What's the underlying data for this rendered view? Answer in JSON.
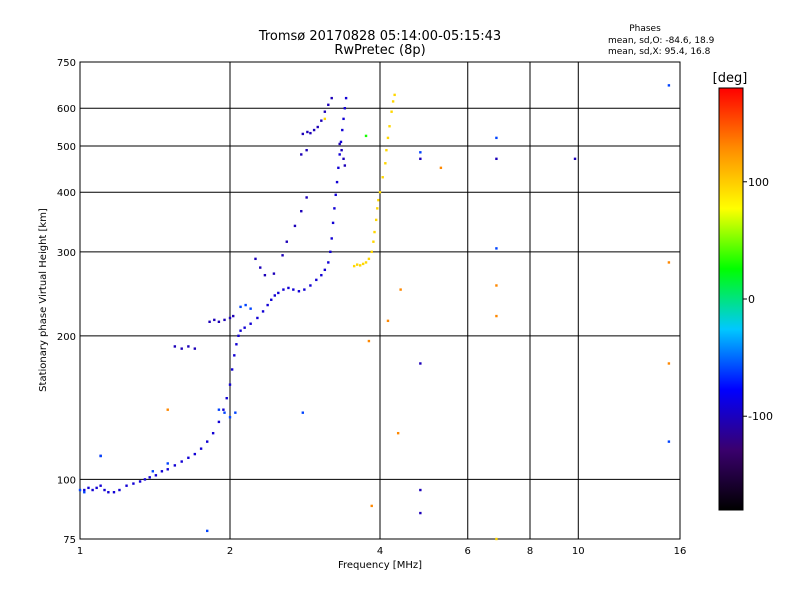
{
  "chart_data": {
    "type": "scatter",
    "title": "Tromsø 20170828 05:14:00-05:15:43",
    "subtitle": "RwPretec (8p)",
    "xlabel": "Frequency [MHz]",
    "ylabel": "Stationary phase Virtual Height [km]",
    "x_scale": "log",
    "y_scale": "log",
    "xlim": [
      1,
      16
    ],
    "ylim": [
      75,
      750
    ],
    "x_ticks": [
      1,
      2,
      4,
      6,
      8,
      10,
      16
    ],
    "y_ticks": [
      75,
      100,
      200,
      300,
      400,
      500,
      600,
      750
    ],
    "grid": true,
    "phase_stats": {
      "heading": "Phases",
      "o_line": "mean, sd,O: -84.6, 18.9",
      "x_line": "mean, sd,X:  95.4, 16.8"
    },
    "colorbar": {
      "label": "[deg]",
      "range": [
        -180,
        180
      ],
      "ticks": [
        100,
        0,
        -100
      ],
      "colors": [
        "#000000",
        "#3a006e",
        "#0000ff",
        "#00c8ff",
        "#00ff00",
        "#ffff00",
        "#ff8c00",
        "#ff0000"
      ]
    },
    "series": [
      {
        "phase_deg": -92,
        "points": [
          [
            1.02,
            95
          ],
          [
            1.04,
            96
          ],
          [
            1.06,
            95
          ],
          [
            1.08,
            96
          ],
          [
            1.1,
            97
          ],
          [
            1.12,
            95
          ],
          [
            1.14,
            94
          ],
          [
            1.17,
            94
          ],
          [
            1.2,
            95
          ],
          [
            1.24,
            97
          ],
          [
            1.28,
            98
          ],
          [
            1.32,
            99
          ],
          [
            1.35,
            100
          ],
          [
            1.38,
            101
          ],
          [
            1.42,
            102
          ],
          [
            1.46,
            104
          ],
          [
            1.5,
            105
          ],
          [
            1.55,
            107
          ],
          [
            1.6,
            109
          ],
          [
            1.65,
            111
          ],
          [
            1.7,
            113
          ],
          [
            1.75,
            116
          ],
          [
            1.8,
            120
          ],
          [
            1.85,
            125
          ],
          [
            1.9,
            132
          ],
          [
            1.94,
            140
          ],
          [
            1.97,
            148
          ],
          [
            2.0,
            158
          ],
          [
            2.02,
            170
          ],
          [
            2.04,
            182
          ],
          [
            2.06,
            192
          ],
          [
            2.08,
            200
          ],
          [
            2.1,
            205
          ],
          [
            2.14,
            208
          ],
          [
            2.2,
            212
          ],
          [
            2.27,
            218
          ],
          [
            2.33,
            225
          ],
          [
            2.38,
            232
          ],
          [
            2.42,
            238
          ],
          [
            2.46,
            243
          ],
          [
            2.5,
            246
          ],
          [
            2.56,
            250
          ],
          [
            2.62,
            252
          ],
          [
            2.68,
            250
          ],
          [
            2.75,
            248
          ],
          [
            2.82,
            250
          ],
          [
            2.9,
            255
          ],
          [
            2.98,
            262
          ],
          [
            3.05,
            268
          ],
          [
            3.1,
            275
          ],
          [
            3.15,
            285
          ],
          [
            3.18,
            300
          ],
          [
            3.2,
            320
          ],
          [
            3.22,
            345
          ],
          [
            3.24,
            370
          ],
          [
            3.26,
            395
          ],
          [
            3.28,
            420
          ],
          [
            3.3,
            450
          ],
          [
            3.32,
            480
          ],
          [
            3.34,
            510
          ],
          [
            3.36,
            540
          ],
          [
            3.38,
            570
          ],
          [
            3.4,
            600
          ],
          [
            3.42,
            630
          ]
        ]
      },
      {
        "phase_deg": -102,
        "points": [
          [
            1.1,
            112
          ],
          [
            1.55,
            190
          ],
          [
            1.6,
            188
          ],
          [
            1.65,
            190
          ],
          [
            1.7,
            188
          ],
          [
            1.82,
            214
          ],
          [
            1.86,
            216
          ],
          [
            1.9,
            214
          ],
          [
            1.95,
            216
          ],
          [
            2.0,
            218
          ],
          [
            2.03,
            220
          ],
          [
            2.25,
            290
          ],
          [
            2.3,
            278
          ],
          [
            2.35,
            268
          ],
          [
            2.45,
            270
          ],
          [
            2.55,
            295
          ],
          [
            2.6,
            315
          ],
          [
            2.7,
            340
          ],
          [
            2.78,
            365
          ],
          [
            2.85,
            390
          ],
          [
            2.78,
            480
          ],
          [
            2.85,
            490
          ],
          [
            2.8,
            530
          ],
          [
            2.86,
            535
          ],
          [
            2.9,
            532
          ],
          [
            2.95,
            540
          ],
          [
            3.0,
            548
          ],
          [
            3.05,
            565
          ],
          [
            3.1,
            590
          ],
          [
            3.15,
            610
          ],
          [
            3.2,
            630
          ],
          [
            3.32,
            505
          ],
          [
            3.35,
            490
          ],
          [
            3.38,
            470
          ],
          [
            3.4,
            455
          ],
          [
            4.82,
            470
          ],
          [
            6.85,
            470
          ],
          [
            9.85,
            470
          ],
          [
            4.82,
            175
          ],
          [
            4.82,
            85
          ],
          [
            4.82,
            95
          ]
        ]
      },
      {
        "phase_deg": -60,
        "points": [
          [
            1.0,
            95
          ],
          [
            1.02,
            94
          ],
          [
            1.1,
            112
          ],
          [
            1.4,
            104
          ],
          [
            1.5,
            108
          ],
          [
            1.9,
            140
          ],
          [
            1.95,
            138
          ],
          [
            2.0,
            135
          ],
          [
            2.05,
            138
          ],
          [
            2.1,
            230
          ],
          [
            2.15,
            232
          ],
          [
            2.2,
            228
          ],
          [
            2.8,
            138
          ],
          [
            1.8,
            78
          ],
          [
            6.85,
            520
          ],
          [
            6.85,
            305
          ],
          [
            4.82,
            485
          ],
          [
            15.2,
            120
          ],
          [
            15.2,
            670
          ]
        ]
      },
      {
        "phase_deg": 95,
        "points": [
          [
            3.55,
            280
          ],
          [
            3.6,
            282
          ],
          [
            3.65,
            281
          ],
          [
            3.7,
            283
          ],
          [
            3.75,
            285
          ],
          [
            3.8,
            290
          ],
          [
            3.85,
            300
          ],
          [
            3.88,
            315
          ],
          [
            3.9,
            330
          ],
          [
            3.93,
            350
          ],
          [
            3.95,
            370
          ],
          [
            3.97,
            385
          ],
          [
            4.0,
            400
          ],
          [
            4.05,
            430
          ],
          [
            4.1,
            460
          ],
          [
            4.12,
            490
          ],
          [
            4.15,
            520
          ],
          [
            4.18,
            550
          ],
          [
            4.22,
            590
          ],
          [
            4.25,
            620
          ],
          [
            4.28,
            640
          ],
          [
            3.1,
            570
          ],
          [
            6.85,
            75
          ]
        ]
      },
      {
        "phase_deg": 130,
        "points": [
          [
            1.5,
            140
          ],
          [
            3.8,
            195
          ],
          [
            3.85,
            88
          ],
          [
            4.15,
            215
          ],
          [
            4.35,
            125
          ],
          [
            4.4,
            250
          ],
          [
            5.3,
            450
          ],
          [
            6.85,
            255
          ],
          [
            6.85,
            220
          ],
          [
            15.2,
            285
          ],
          [
            15.2,
            175
          ]
        ]
      },
      {
        "phase_deg": 30,
        "points": [
          [
            3.75,
            525
          ]
        ]
      }
    ]
  }
}
